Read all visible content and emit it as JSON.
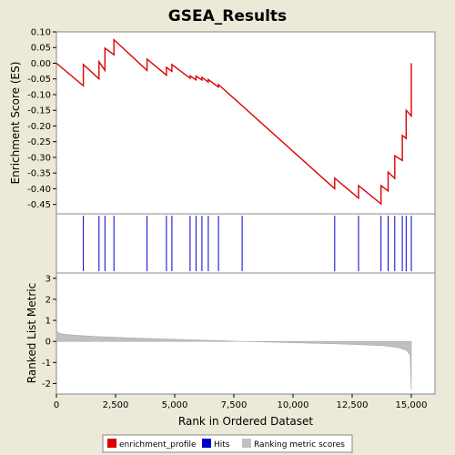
{
  "chart_data": {
    "type": "line",
    "title": "GSEA_Results",
    "xlabel": "Rank in Ordered Dataset",
    "colors": {
      "background": "#ece9d8",
      "plot_bg": "#ffffff",
      "enrichment": "#dd0000",
      "hits": "#0000cc",
      "metric": "#c0c0c0"
    },
    "x_range": [
      0,
      16000
    ],
    "x_ticks": [
      0,
      2500,
      5000,
      7500,
      10000,
      12500,
      15000
    ],
    "x_tick_labels": [
      "0",
      "2,500",
      "5,000",
      "7,500",
      "10,000",
      "12,500",
      "15,000"
    ],
    "n_genes": 15022,
    "enrichment_panel": {
      "ylabel": "Enrichment Score (ES)",
      "ylim": [
        -0.48,
        0.1
      ],
      "y_ticks": [
        0.1,
        0.05,
        0.0,
        -0.05,
        -0.1,
        -0.15,
        -0.2,
        -0.25,
        -0.3,
        -0.35,
        -0.4,
        -0.45
      ],
      "y_tick_labels": [
        "0.10",
        "0.05",
        "0.00",
        "-0.05",
        "-0.10",
        "-0.15",
        "-0.20",
        "-0.25",
        "-0.30",
        "-0.35",
        "-0.40",
        "-0.45"
      ],
      "series": {
        "x": [
          0,
          1140,
          1140,
          1800,
          1800,
          2050,
          2050,
          2430,
          2430,
          3830,
          3830,
          4650,
          4650,
          4880,
          4880,
          5650,
          5650,
          5900,
          5900,
          6150,
          6150,
          6420,
          6420,
          6850,
          6850,
          11760,
          11760,
          12770,
          12770,
          13720,
          13720,
          14020,
          14020,
          14300,
          14300,
          14620,
          14620,
          14780,
          14780,
          15000,
          15000
        ],
        "y": [
          0.0,
          -0.072,
          -0.004,
          -0.05,
          0.005,
          -0.023,
          0.048,
          0.027,
          0.075,
          -0.023,
          0.013,
          -0.038,
          -0.013,
          -0.026,
          -0.004,
          -0.048,
          -0.04,
          -0.053,
          -0.041,
          -0.053,
          -0.045,
          -0.06,
          -0.052,
          -0.076,
          -0.068,
          -0.4,
          -0.366,
          -0.43,
          -0.39,
          -0.448,
          -0.39,
          -0.407,
          -0.347,
          -0.367,
          -0.295,
          -0.31,
          -0.23,
          -0.24,
          -0.15,
          -0.168,
          0.0
        ]
      }
    },
    "hits_panel": {
      "hit_positions": [
        1140,
        1800,
        2050,
        2430,
        3830,
        4650,
        4880,
        5650,
        5900,
        6150,
        6420,
        6850,
        7850,
        11760,
        12770,
        13720,
        14020,
        14300,
        14620,
        14780,
        15000
      ]
    },
    "metric_panel": {
      "ylabel": "Ranked List Metric",
      "ylim": [
        -2.5,
        3.25
      ],
      "y_ticks": [
        3,
        2,
        1,
        0,
        -1,
        -2
      ],
      "y_tick_labels": [
        "3",
        "2",
        "1",
        "0",
        "-1",
        "-2"
      ],
      "profile": {
        "x": [
          0,
          100,
          300,
          700,
          1500,
          3000,
          5000,
          7500,
          10000,
          12500,
          13800,
          14400,
          14800,
          14950,
          15000
        ],
        "y": [
          0.52,
          0.4,
          0.34,
          0.3,
          0.24,
          0.17,
          0.1,
          0.01,
          -0.06,
          -0.14,
          -0.2,
          -0.28,
          -0.42,
          -0.65,
          -2.3
        ]
      }
    },
    "legend": {
      "placement": "bottom",
      "entries": [
        {
          "label": "enrichment_profile",
          "color": "#dd0000"
        },
        {
          "label": "Hits",
          "color": "#0000cc"
        },
        {
          "label": "Ranking metric scores",
          "color": "#c0c0c0"
        }
      ]
    }
  }
}
